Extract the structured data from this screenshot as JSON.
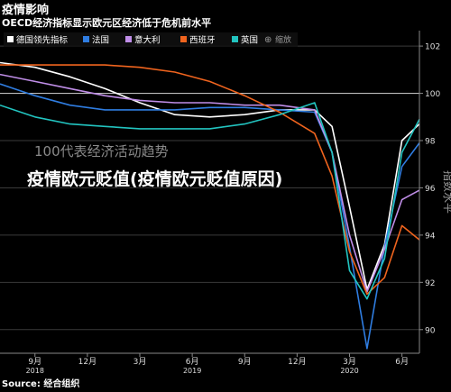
{
  "overlay_title": "疫情欧元贬值(疫情欧元贬值原因)",
  "chart_data": {
    "type": "line",
    "title": "疫情影响",
    "subtitle": "OECD经济指标显示欧元区经济低于危机前水平",
    "watermark": "100代表经济活动趋势",
    "ylabel": "指数水平",
    "source": "Source: 经合组织",
    "ylim": [
      89,
      102.5
    ],
    "y_ticks": [
      90,
      92,
      94,
      96,
      98,
      100,
      102
    ],
    "x_ticks": [
      {
        "t": 0,
        "label": "9月"
      },
      {
        "t": 3,
        "label": "12月"
      },
      {
        "t": 6,
        "label": "3月"
      },
      {
        "t": 9,
        "label": "6月"
      },
      {
        "t": 12,
        "label": "9月"
      },
      {
        "t": 15,
        "label": "12月"
      },
      {
        "t": 18,
        "label": "3月"
      },
      {
        "t": 21,
        "label": "6月"
      }
    ],
    "year_labels": [
      {
        "t": 0,
        "label": "2018"
      },
      {
        "t": 9,
        "label": "2019"
      },
      {
        "t": 18,
        "label": "2020"
      }
    ],
    "xlim": [
      -2,
      22
    ],
    "reference_line": 100,
    "legend_extra": [
      "缩放"
    ],
    "series": [
      {
        "name": "德国领先指标",
        "color": "#ffffff",
        "x": [
          -2,
          0,
          2,
          4,
          6,
          8,
          10,
          12,
          14,
          16,
          17,
          18,
          19,
          20,
          21,
          22
        ],
        "values": [
          101.3,
          101.1,
          100.7,
          100.2,
          99.6,
          99.1,
          99.0,
          99.1,
          99.3,
          99.3,
          98.6,
          95.2,
          91.7,
          93.6,
          98.0,
          98.7
        ]
      },
      {
        "name": "法国",
        "color": "#2f7de1",
        "x": [
          -2,
          0,
          2,
          4,
          6,
          8,
          10,
          12,
          14,
          16,
          17,
          18,
          19,
          20,
          21,
          22
        ],
        "values": [
          100.4,
          99.9,
          99.5,
          99.3,
          99.3,
          99.3,
          99.4,
          99.4,
          99.3,
          99.2,
          97.5,
          93.5,
          89.2,
          93.5,
          96.9,
          97.9
        ]
      },
      {
        "name": "意大利",
        "color": "#c08ee8",
        "x": [
          -2,
          0,
          2,
          4,
          6,
          8,
          10,
          12,
          14,
          16,
          17,
          18,
          19,
          20,
          21,
          22
        ],
        "values": [
          100.8,
          100.5,
          100.2,
          99.9,
          99.7,
          99.6,
          99.6,
          99.5,
          99.5,
          99.3,
          97.5,
          94.0,
          91.6,
          93.4,
          95.5,
          95.9
        ]
      },
      {
        "name": "西班牙",
        "color": "#f0641e",
        "x": [
          -2,
          0,
          2,
          4,
          6,
          8,
          10,
          12,
          14,
          16,
          17,
          18,
          19,
          20,
          21,
          22
        ],
        "values": [
          101.2,
          101.2,
          101.2,
          101.2,
          101.1,
          100.9,
          100.5,
          99.9,
          99.2,
          98.3,
          96.5,
          93.3,
          91.5,
          92.2,
          94.4,
          93.8
        ]
      },
      {
        "name": "英国",
        "color": "#22c4c0",
        "x": [
          -2,
          0,
          2,
          4,
          6,
          8,
          10,
          12,
          14,
          16,
          17,
          18,
          19,
          20,
          21,
          22
        ],
        "values": [
          99.5,
          99.0,
          98.7,
          98.6,
          98.5,
          98.5,
          98.5,
          98.7,
          99.1,
          99.6,
          97.5,
          92.5,
          91.3,
          93.0,
          97.5,
          98.9
        ]
      }
    ]
  }
}
